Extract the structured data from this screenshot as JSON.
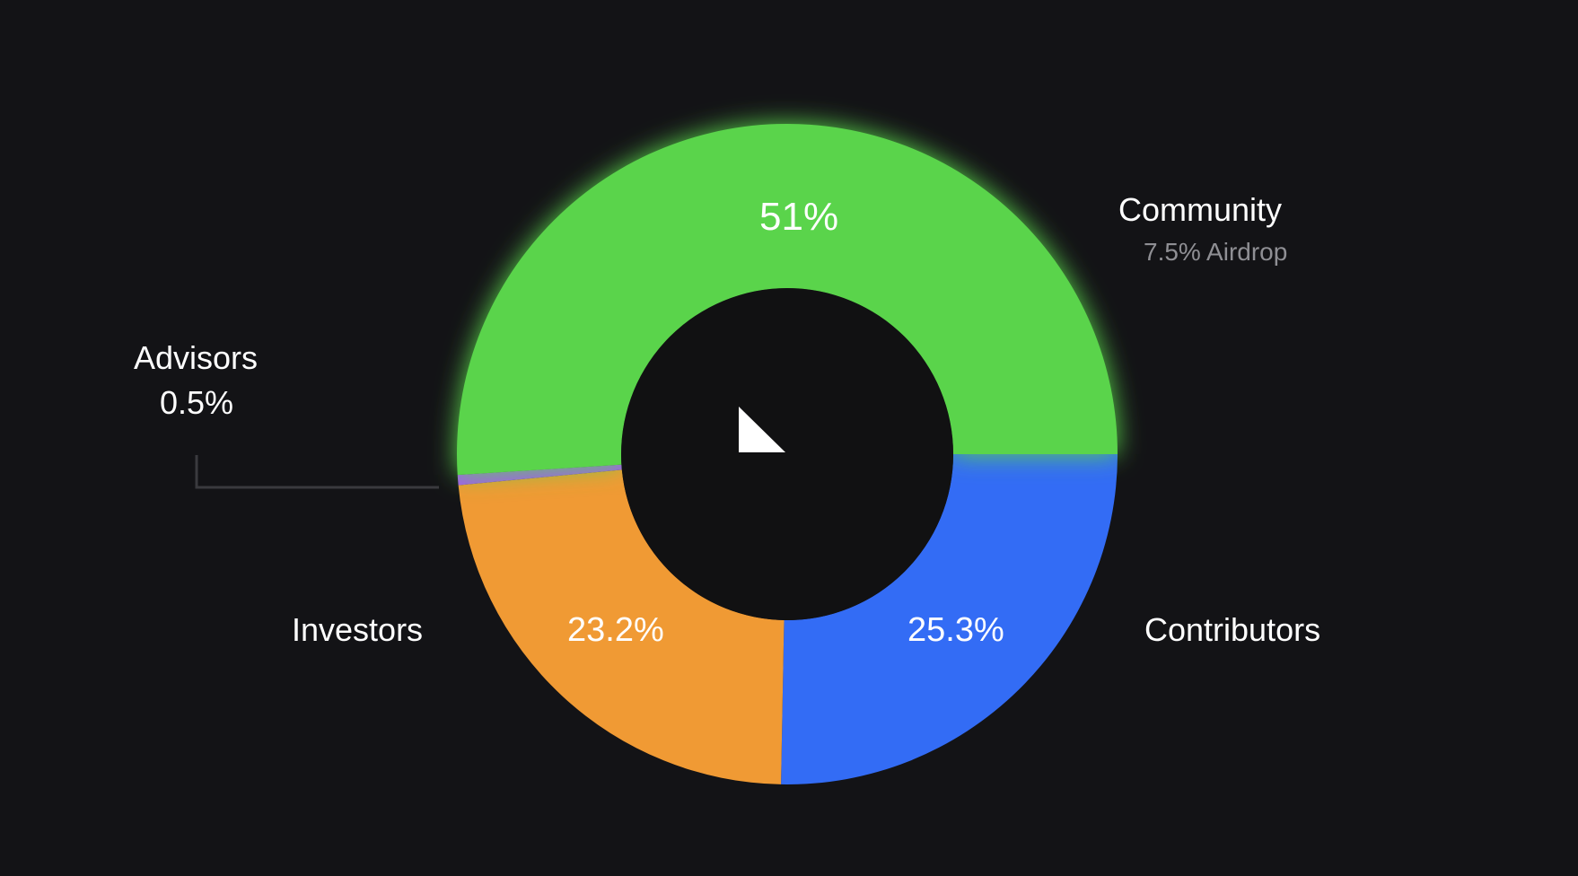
{
  "chart_data": {
    "type": "pie",
    "variant": "donut",
    "categories": [
      "Community",
      "Contributors",
      "Investors",
      "Advisors"
    ],
    "values": [
      51,
      25.3,
      23.2,
      0.5
    ],
    "value_labels": [
      "51%",
      "25.3%",
      "23.2%",
      "0.5%"
    ],
    "colors": [
      "#5ad44c",
      "#336cf5",
      "#f09a34",
      "#a55cf0"
    ],
    "annotations": [
      {
        "category": "Community",
        "text": "7.5% Airdrop"
      }
    ],
    "center_icon": "logo-mark-icon"
  },
  "labels": {
    "community": "Community",
    "community_sub": "7.5% Airdrop",
    "community_pct": "51%",
    "contributors": "Contributors",
    "contributors_pct": "25.3%",
    "investors": "Investors",
    "investors_pct": "23.2%",
    "advisors": "Advisors",
    "advisors_pct": "0.5%"
  },
  "theme": {
    "background": "#131316",
    "hole": "#111112",
    "leader": "#3a3a3e"
  }
}
